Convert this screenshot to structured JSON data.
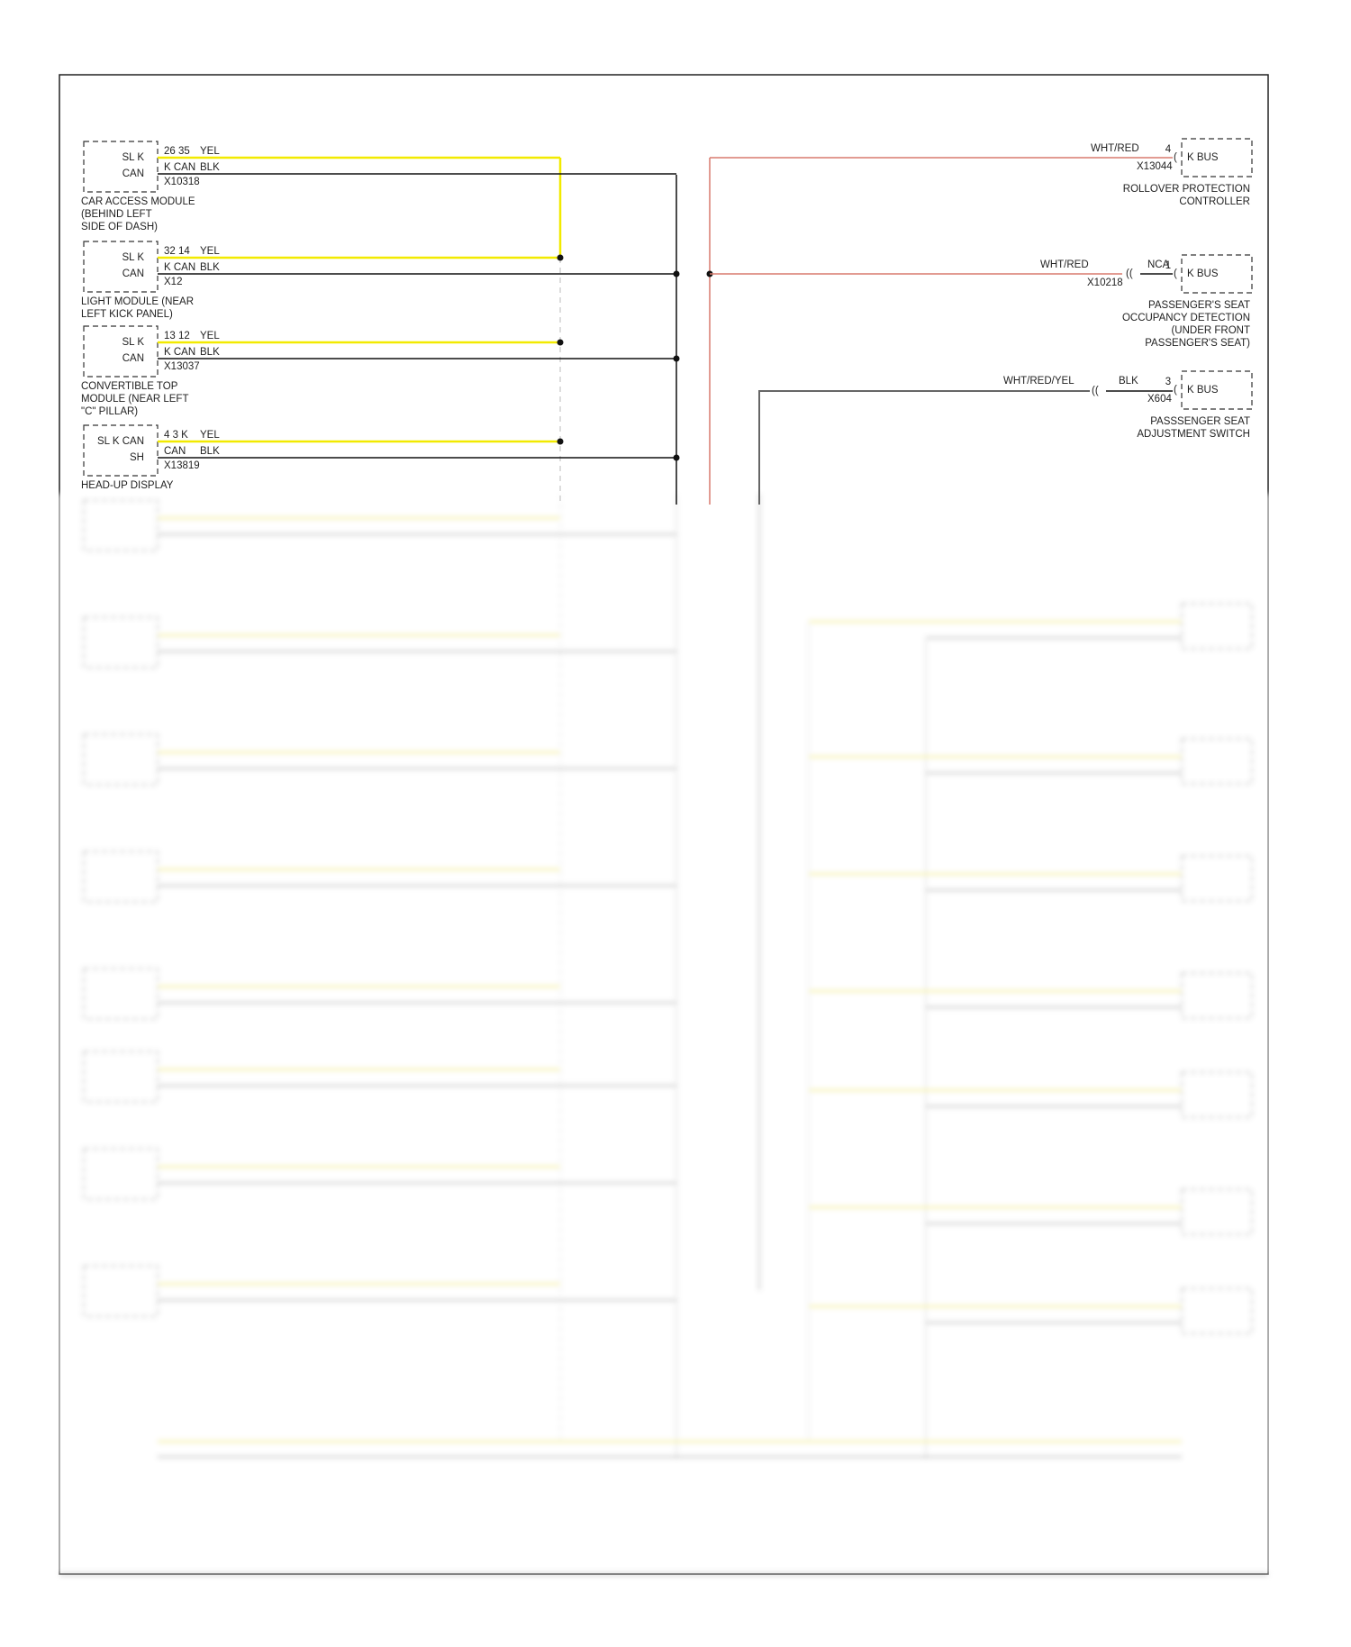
{
  "left_modules": [
    {
      "box": [
        "SL K",
        "CAN"
      ],
      "pins_top": "26 35",
      "wire_top": "YEL",
      "pins_bottom": "K CAN",
      "wire_bottom": "BLK",
      "connector": "X10318",
      "caption": [
        "CAR ACCESS MODULE",
        "(BEHIND LEFT",
        "SIDE OF DASH)"
      ]
    },
    {
      "box": [
        "SL K",
        "CAN"
      ],
      "pins_top": "32 14",
      "wire_top": "YEL",
      "pins_bottom": "K CAN",
      "wire_bottom": "BLK",
      "connector": "X12",
      "caption": [
        "LIGHT MODULE (NEAR",
        "LEFT KICK PANEL)"
      ]
    },
    {
      "box": [
        "SL K",
        "CAN"
      ],
      "pins_top": "13 12",
      "wire_top": "YEL",
      "pins_bottom": "K CAN",
      "wire_bottom": "BLK",
      "connector": "X13037",
      "caption": [
        "CONVERTIBLE TOP",
        "MODULE (NEAR LEFT",
        "\"C\" PILLAR)"
      ]
    },
    {
      "box": [
        "SL K CAN",
        "SH"
      ],
      "pins_top": "4 3 K",
      "wire_top": "YEL",
      "pins_bottom": "CAN",
      "wire_bottom": "BLK",
      "connector": "X13819",
      "caption": [
        "HEAD-UP DISPLAY"
      ]
    }
  ],
  "right_modules": [
    {
      "wire": "WHT/RED",
      "pin": "4",
      "connector": "X13044",
      "box": "K BUS",
      "caption": [
        "ROLLOVER PROTECTION",
        "CONTROLLER"
      ]
    },
    {
      "wire": "WHT/RED",
      "pin": "1",
      "splice": "NCA",
      "connector": "X10218",
      "box": "K BUS",
      "caption": [
        "PASSENGER'S SEAT",
        "OCCUPANCY DETECTION",
        "(UNDER FRONT",
        "PASSENGER'S SEAT)"
      ]
    },
    {
      "wire": "WHT/RED/YEL",
      "pin": "3",
      "splice": "BLK",
      "connector": "X604",
      "box": "K BUS",
      "caption": [
        "PASSSENGER SEAT",
        "ADJUSTMENT SWITCH"
      ]
    }
  ]
}
